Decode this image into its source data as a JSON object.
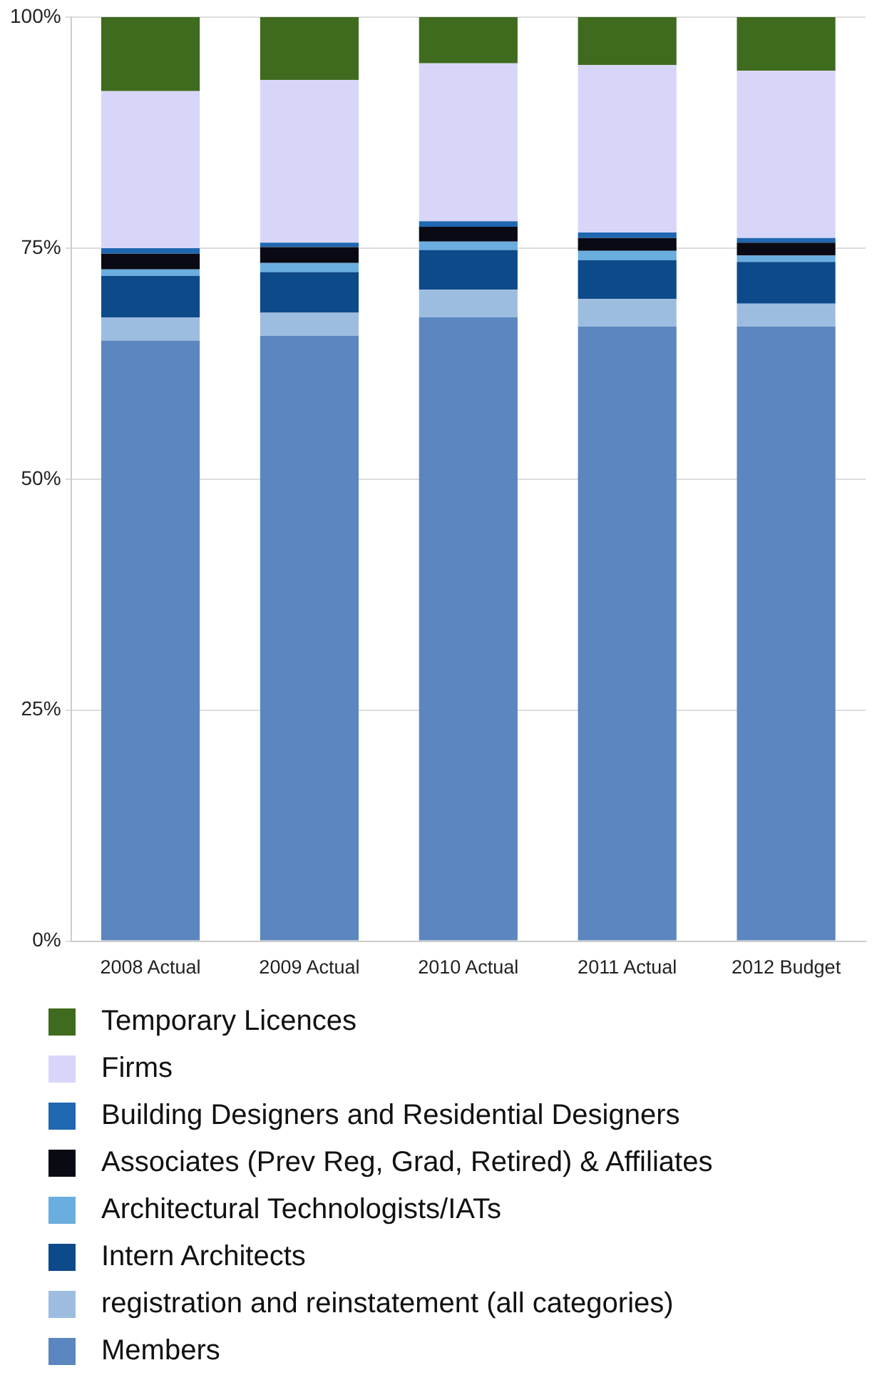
{
  "chart_data": {
    "type": "bar",
    "stacked": true,
    "categories": [
      "2008 Actual",
      "2009 Actual",
      "2010 Actual",
      "2011 Actual",
      "2012 Budget"
    ],
    "series": [
      {
        "name": "Members",
        "color": "#5b86bf",
        "values": [
          65,
          65.5,
          67.5,
          66.5,
          66.5
        ]
      },
      {
        "name": "registration and reinstatement (all categories)",
        "color": "#9dbde0",
        "values": [
          2.5,
          2.5,
          3,
          3,
          2.5
        ]
      },
      {
        "name": "Intern Architects",
        "color": "#0d4a8a",
        "values": [
          4.5,
          4.4,
          4.3,
          4.2,
          4.5
        ]
      },
      {
        "name": "Architectural Technologists/IATs",
        "color": "#6aaee0",
        "values": [
          0.7,
          1,
          0.9,
          1,
          0.7
        ]
      },
      {
        "name": "Associates (Prev Reg, Grad, Retired) & Affiliates",
        "color": "#0a0a14",
        "values": [
          1.7,
          1.7,
          1.6,
          1.4,
          1.4
        ]
      },
      {
        "name": "Building Designers and Residential Designers",
        "color": "#1f67b0",
        "values": [
          0.6,
          0.5,
          0.6,
          0.6,
          0.5
        ]
      },
      {
        "name": "Firms",
        "color": "#d8d6f8",
        "values": [
          17,
          17.6,
          17.1,
          18.1,
          18.1
        ]
      },
      {
        "name": "Temporary Licences",
        "color": "#3f6b1e",
        "values": [
          8,
          6.8,
          5,
          5.2,
          5.8
        ]
      }
    ],
    "ylim": [
      0,
      100
    ],
    "yticks": [
      {
        "value": 0,
        "label": "0%"
      },
      {
        "value": 25,
        "label": "25%"
      },
      {
        "value": 50,
        "label": "50%"
      },
      {
        "value": 75,
        "label": "75%"
      },
      {
        "value": 100,
        "label": "100%"
      }
    ],
    "grid": "y",
    "legend": "bottom"
  }
}
